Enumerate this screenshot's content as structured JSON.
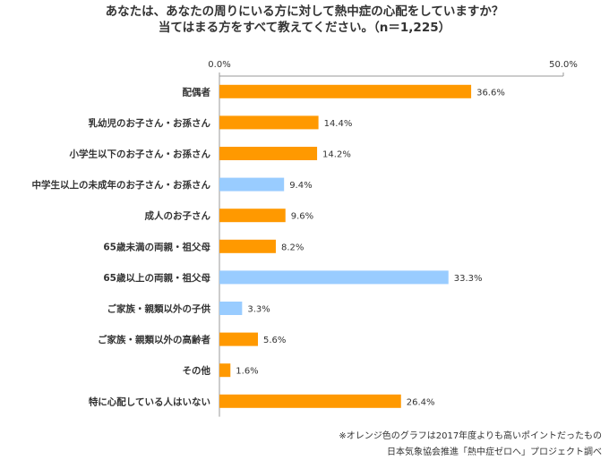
{
  "title_line1": "あなたは、あなたの周りにいる方に対して熱中症の心配をしていますか？",
  "title_line2": "当てはまる方をすべて教えてください。（n＝1,225）",
  "note_line1": "※オレンジ色のグラフは2017年度よりも高いポイントだったもの",
  "note_line2": "日本気象協会推進「熱中症ゼロへ」プロジェクト調べ",
  "colors": {
    "orange": "#ff9900",
    "blue": "#99ccff",
    "axis": "#999999",
    "text": "#333333"
  },
  "chart_data": {
    "type": "bar",
    "orientation": "horizontal",
    "xlim": [
      0,
      50
    ],
    "tick_labels": [
      "0.0%",
      "50.0%"
    ],
    "categories": [
      "配偶者",
      "乳幼児のお子さん・お孫さん",
      "小学生以下のお子さん・お孫さん",
      "中学生以上の未成年のお子さん・お孫さん",
      "成人のお子さん",
      "65歳未満の両親・祖父母",
      "65歳以上の両親・祖父母",
      "ご家族・親類以外の子供",
      "ご家族・親類以外の高齢者",
      "その他",
      "特に心配している人はいない"
    ],
    "values": [
      36.6,
      14.4,
      14.2,
      9.4,
      9.6,
      8.2,
      33.3,
      3.3,
      5.6,
      1.6,
      26.4
    ],
    "value_labels": [
      "36.6%",
      "14.4%",
      "14.2%",
      "9.4%",
      "9.6%",
      "8.2%",
      "33.3%",
      "3.3%",
      "5.6%",
      "1.6%",
      "26.4%"
    ],
    "highlight": [
      true,
      true,
      true,
      false,
      true,
      true,
      false,
      false,
      true,
      true,
      true
    ]
  }
}
